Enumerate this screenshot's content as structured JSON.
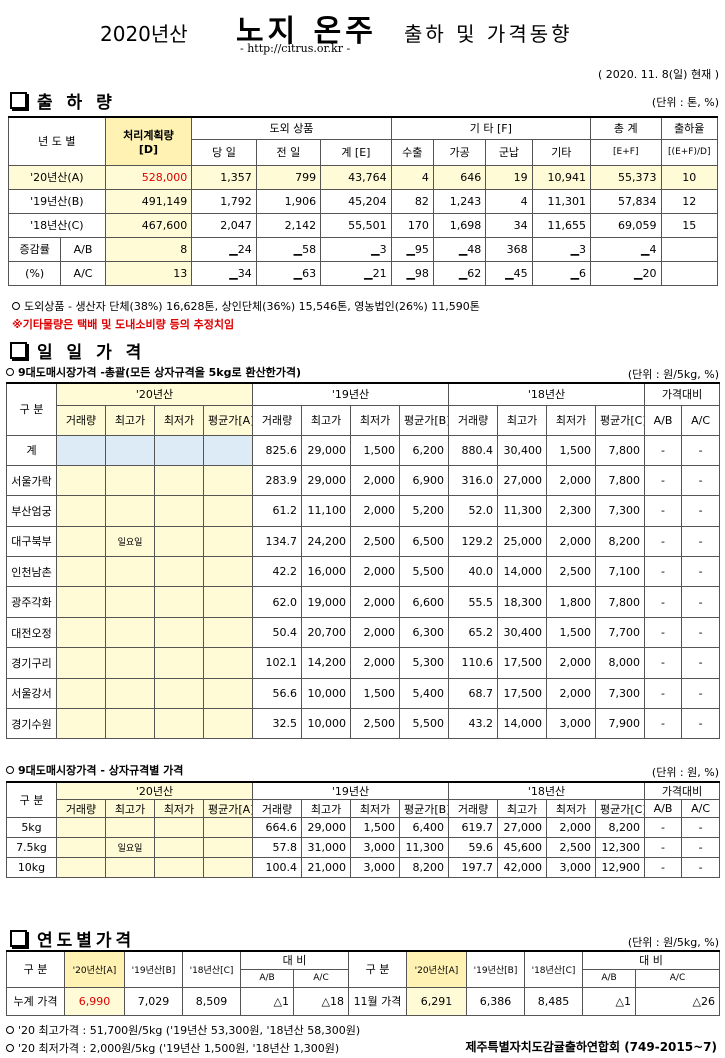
{
  "header": {
    "year": "2020년산",
    "main": "노지 온주",
    "sub": "출하 및 가격동향",
    "url": "- http://citrus.or.kr -",
    "date": "( 2020. 11. 8(일) 현재 )"
  },
  "shipment": {
    "title": "출 하 량",
    "unit": "(단위 : 톤, %)",
    "h_year": "년 도 별",
    "h_plan": "처리계획량",
    "h_plan_d": "[D]",
    "h_out": "도외 상품",
    "h_today": "당 일",
    "h_prev": "전 일",
    "h_sum_e": "계 [E]",
    "h_etc": "기 타 [F]",
    "h_export": "수출",
    "h_process": "가공",
    "h_military": "군납",
    "h_other": "기타",
    "h_total": "총 계",
    "h_total_sub": "[E+F]",
    "h_ratio": "출하율",
    "h_ratio_sub": "[(E+F)/D]",
    "rows": [
      {
        "label": "'20년산(A)",
        "plan": "528,000",
        "today": "1,357",
        "prev": "799",
        "sum": "43,764",
        "export": "4",
        "process": "646",
        "military": "19",
        "other": "10,941",
        "total": "55,373",
        "ratio": "10"
      },
      {
        "label": "'19년산(B)",
        "plan": "491,149",
        "today": "1,792",
        "prev": "1,906",
        "sum": "45,204",
        "export": "82",
        "process": "1,243",
        "military": "4",
        "other": "11,301",
        "total": "57,834",
        "ratio": "12"
      },
      {
        "label": "'18년산(C)",
        "plan": "467,600",
        "today": "2,047",
        "prev": "2,142",
        "sum": "55,501",
        "export": "170",
        "process": "1,698",
        "military": "34",
        "other": "11,655",
        "total": "69,059",
        "ratio": "15"
      }
    ],
    "inc_label": "증감률",
    "pct_label": "(%)",
    "inc_rows": [
      {
        "label": "A/B",
        "plan": "8",
        "today": "▁24",
        "prev": "▁58",
        "sum": "▁3",
        "export": "▁95",
        "process": "▁48",
        "military": "368",
        "other": "▁3",
        "total": "▁4",
        "ratio": ""
      },
      {
        "label": "A/C",
        "plan": "13",
        "today": "▁34",
        "prev": "▁63",
        "sum": "▁21",
        "export": "▁98",
        "process": "▁62",
        "military": "▁45",
        "other": "▁6",
        "total": "▁20",
        "ratio": ""
      }
    ],
    "note1": "도외상품 - 생산자 단체(38%) 16,628톤,   상인단체(36%) 15,546톤,   영농법인(26%) 11,590톤",
    "note2": "※기타물량은 택배 및 도내소비량 등의 추정치임"
  },
  "daily": {
    "title": "일 일 가 격",
    "sub1": "9대도매시장가격 -총괄(모든 상자규격을 5kg로 환산한가격)",
    "unit1": "(단위 : 원/5kg, %)",
    "h_gubun": "구  분",
    "h_y20": "'20년산",
    "h_y19": "'19년산",
    "h_y18": "'18년산",
    "h_cmp": "가격대비",
    "h_vol": "거래량",
    "h_max": "최고가",
    "h_min": "최저가",
    "h_avg_a": "평균가[A]",
    "h_avg_b": "평균가[B]",
    "h_avg_c": "평균가[C]",
    "h_ab": "A/B",
    "h_ac": "A/C",
    "holiday": "일요일",
    "rows": [
      {
        "label": "계",
        "v19": "825.6",
        "mx19": "29,000",
        "mn19": "1,500",
        "av19": "6,200",
        "v18": "880.4",
        "mx18": "30,400",
        "mn18": "1,500",
        "av18": "7,800",
        "ab": "-",
        "ac": "-"
      },
      {
        "label": "서울가락",
        "v19": "283.9",
        "mx19": "29,000",
        "mn19": "2,000",
        "av19": "6,900",
        "v18": "316.0",
        "mx18": "27,000",
        "mn18": "2,000",
        "av18": "7,800",
        "ab": "-",
        "ac": "-"
      },
      {
        "label": "부산엄궁",
        "v19": "61.2",
        "mx19": "11,100",
        "mn19": "2,000",
        "av19": "5,200",
        "v18": "52.0",
        "mx18": "11,300",
        "mn18": "2,300",
        "av18": "7,300",
        "ab": "-",
        "ac": "-"
      },
      {
        "label": "대구북부",
        "v19": "134.7",
        "mx19": "24,200",
        "mn19": "2,500",
        "av19": "6,500",
        "v18": "129.2",
        "mx18": "25,000",
        "mn18": "2,000",
        "av18": "8,200",
        "ab": "-",
        "ac": "-"
      },
      {
        "label": "인천남촌",
        "v19": "42.2",
        "mx19": "16,000",
        "mn19": "2,000",
        "av19": "5,500",
        "v18": "40.0",
        "mx18": "14,000",
        "mn18": "2,500",
        "av18": "7,100",
        "ab": "-",
        "ac": "-"
      },
      {
        "label": "광주각화",
        "v19": "62.0",
        "mx19": "19,000",
        "mn19": "2,000",
        "av19": "6,600",
        "v18": "55.5",
        "mx18": "18,300",
        "mn18": "1,800",
        "av18": "7,800",
        "ab": "-",
        "ac": "-"
      },
      {
        "label": "대전오정",
        "v19": "50.4",
        "mx19": "20,700",
        "mn19": "2,000",
        "av19": "6,300",
        "v18": "65.2",
        "mx18": "30,400",
        "mn18": "1,500",
        "av18": "7,700",
        "ab": "-",
        "ac": "-"
      },
      {
        "label": "경기구리",
        "v19": "102.1",
        "mx19": "14,200",
        "mn19": "2,000",
        "av19": "5,300",
        "v18": "110.6",
        "mx18": "17,500",
        "mn18": "2,000",
        "av18": "8,000",
        "ab": "-",
        "ac": "-"
      },
      {
        "label": "서울강서",
        "v19": "56.6",
        "mx19": "10,000",
        "mn19": "1,500",
        "av19": "5,400",
        "v18": "68.7",
        "mx18": "17,500",
        "mn18": "2,000",
        "av18": "7,300",
        "ab": "-",
        "ac": "-"
      },
      {
        "label": "경기수원",
        "v19": "32.5",
        "mx19": "10,000",
        "mn19": "2,500",
        "av19": "5,500",
        "v18": "43.2",
        "mx18": "14,000",
        "mn18": "3,000",
        "av18": "7,900",
        "ab": "-",
        "ac": "-"
      }
    ],
    "sub2": "9대도매시장가격 - 상자규격별 가격",
    "unit2": "(단위 : 원, %)",
    "spec_rows": [
      {
        "label": "5kg",
        "v19": "664.6",
        "mx19": "29,000",
        "mn19": "1,500",
        "av19": "6,400",
        "v18": "619.7",
        "mx18": "27,000",
        "mn18": "2,000",
        "av18": "8,200",
        "ab": "-",
        "ac": "-"
      },
      {
        "label": "7.5kg",
        "v19": "57.8",
        "mx19": "31,000",
        "mn19": "3,000",
        "av19": "11,300",
        "v18": "59.6",
        "mx18": "45,600",
        "mn18": "2,500",
        "av18": "12,300",
        "ab": "-",
        "ac": "-"
      },
      {
        "label": "10kg",
        "v19": "100.4",
        "mx19": "21,000",
        "mn19": "3,000",
        "av19": "8,200",
        "v18": "197.7",
        "mx18": "42,000",
        "mn18": "3,000",
        "av18": "12,900",
        "ab": "-",
        "ac": "-"
      }
    ]
  },
  "yearly": {
    "title": "연도별가격",
    "unit": "(단위 : 원/5kg, %)",
    "h_gubun": "구  분",
    "h_y20": "'20년산[A]",
    "h_y19": "'19년산[B]",
    "h_y18": "'18년산[C]",
    "h_cmp": "대  비",
    "h_ab": "A/B",
    "h_ac": "A/C",
    "row1": {
      "label": "누계 가격",
      "a": "6,990",
      "b": "7,029",
      "c": "8,509",
      "ab": "△1",
      "ac": "△18"
    },
    "row2": {
      "label": "11월 가격",
      "a": "6,291",
      "b": "6,386",
      "c": "8,485",
      "ab": "△1",
      "ac": "△26"
    },
    "note_max": "'20 최고가격 : 51,700원/5kg ('19년산 53,300원, '18년산 58,300원)",
    "note_min": "'20 최저가격 :  2,000원/5kg ('19년산 1,500원, '18년산  1,300원)",
    "org": "제주특별자치도감귤출하연합회 (749-2015~7)"
  },
  "colors": {
    "highlight_yellow": "#fffbd6",
    "header_yellow": "#fff2b3",
    "blue_cell": "#dcebf6",
    "red_text": "#e00000"
  }
}
